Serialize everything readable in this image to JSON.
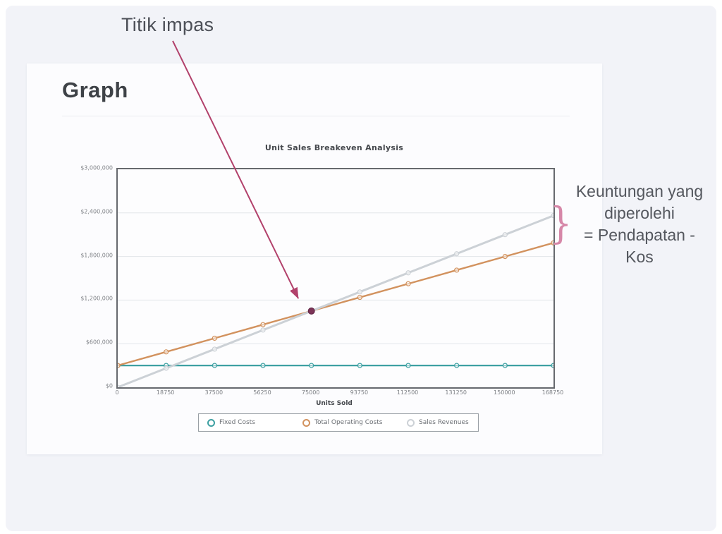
{
  "page": {
    "background_color": "#f2f3f8",
    "card_background": "#fcfcfe"
  },
  "card": {
    "heading": "Graph"
  },
  "annotations": {
    "breakeven_label": "Titik impas",
    "profit_note_lines": [
      "Keuntungan yang",
      "diperolehi",
      "= Pendapatan -",
      "Kos"
    ],
    "arrow_color": "#b2416b",
    "brace_color": "#d687a8",
    "text_color": "#54575e"
  },
  "chart_data": {
    "type": "line",
    "title": "Unit Sales Breakeven Analysis",
    "xlabel": "Units Sold",
    "ylabel": "",
    "xlim": [
      0,
      168750
    ],
    "ylim": [
      0,
      3000000
    ],
    "grid": true,
    "legend_position": "bottom",
    "x": [
      0,
      18750,
      37500,
      56250,
      75000,
      93750,
      112500,
      131250,
      150000,
      168750
    ],
    "xtick_labels": [
      "0",
      "18750",
      "37500",
      "56250",
      "75000",
      "93750",
      "112500",
      "131250",
      "150000",
      "168750"
    ],
    "ytick_values": [
      0,
      600000,
      1200000,
      1800000,
      2400000,
      3000000
    ],
    "ytick_labels": [
      "$0",
      "$600,000",
      "$1,200,000",
      "$1,800,000",
      "$2,400,000",
      "$3,000,000"
    ],
    "series": [
      {
        "name": "Fixed Costs",
        "color": "#3da0a2",
        "stroke_width": 2.2,
        "values": [
          300000,
          300000,
          300000,
          300000,
          300000,
          300000,
          300000,
          300000,
          300000,
          300000
        ]
      },
      {
        "name": "Total Operating Costs",
        "color": "#d2925e",
        "stroke_width": 2.4,
        "values": [
          300000,
          487500,
          675000,
          862500,
          1050000,
          1237500,
          1425000,
          1612500,
          1800000,
          1987500
        ]
      },
      {
        "name": "Sales Revenues",
        "color": "#ccd1d6",
        "stroke_width": 3,
        "values": [
          0,
          262500,
          525000,
          787500,
          1050000,
          1312500,
          1575000,
          1837500,
          2100000,
          2362500
        ]
      }
    ],
    "breakeven_point": {
      "x": 75000,
      "y": 1050000,
      "color": "#7c3457"
    }
  }
}
